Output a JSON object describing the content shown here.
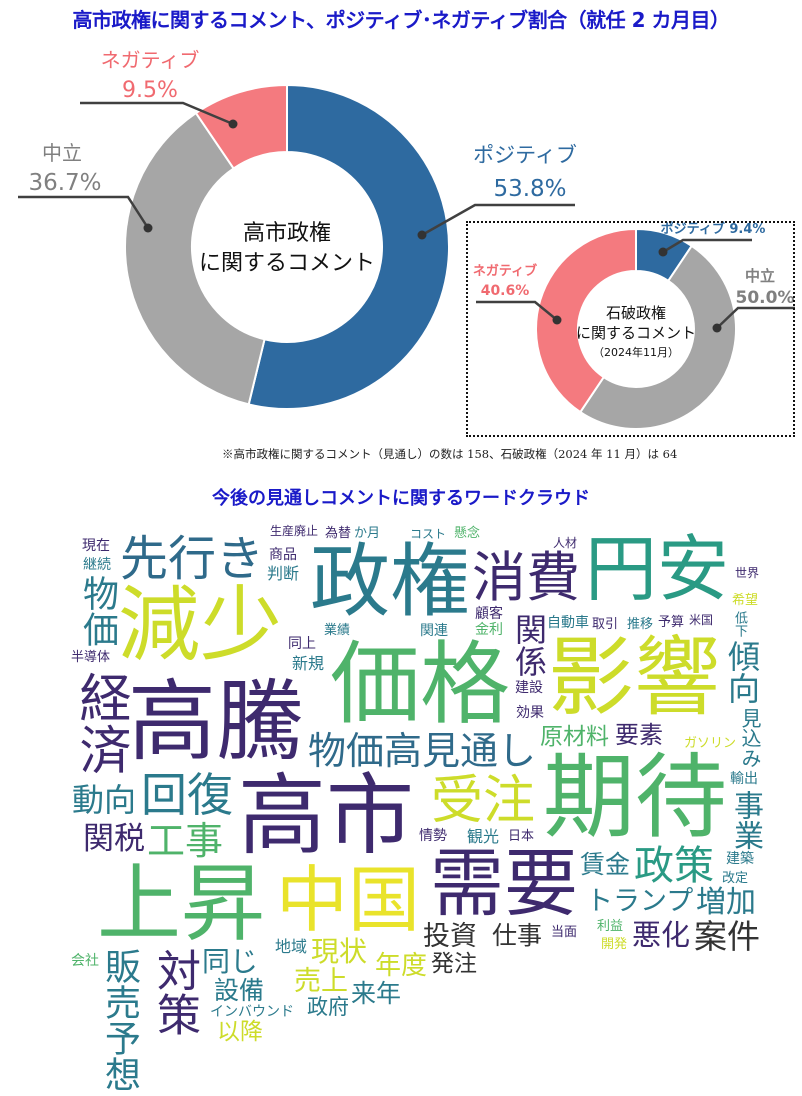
{
  "title": "高市政権に関するコメント、ポジティブ･ネガティブ割合（就任 2 カ月目）",
  "chart_data": [
    {
      "type": "pie",
      "subtype": "donut",
      "center_label": [
        "高市政権",
        "に関するコメント"
      ],
      "categories": [
        "ポジティブ",
        "中立",
        "ネガティブ"
      ],
      "values": [
        53.8,
        36.7,
        9.5
      ],
      "value_labels": [
        "53.8%",
        "36.7%",
        "9.5%"
      ],
      "colors": [
        "#2e6aa0",
        "#a6a6a6",
        "#f47a7f"
      ]
    },
    {
      "type": "pie",
      "subtype": "donut",
      "center_label": [
        "石破政権",
        "に関するコメント",
        "（2024年11月）"
      ],
      "categories": [
        "ポジティブ",
        "中立",
        "ネガティブ"
      ],
      "values": [
        9.4,
        50.0,
        40.6
      ],
      "value_labels": [
        "9.4%",
        "50.0%",
        "40.6%"
      ],
      "colors": [
        "#2e6aa0",
        "#a6a6a6",
        "#f47a7f"
      ]
    }
  ],
  "note": "※高市政権に関するコメント（見通し）の数は 158、石破政権（2024 年 11 月）は 64",
  "wordcloud": {
    "title": "今後の見通しコメントに関するワードクラウド",
    "words": [
      "政権",
      "減少",
      "価格",
      "影響",
      "高騰",
      "中国",
      "高市",
      "上昇",
      "需要",
      "期待",
      "円安",
      "消費",
      "先行き",
      "受注",
      "物価高見通し",
      "販売予想",
      "経済",
      "対策",
      "物価",
      "回復",
      "関係",
      "増加",
      "政策",
      "案件",
      "投資",
      "現状",
      "動向",
      "原材料",
      "関税",
      "工事",
      "設備",
      "売上",
      "仕事",
      "同じ",
      "以降",
      "政府",
      "来年",
      "年度",
      "発注",
      "悪化",
      "トランプ",
      "賃金",
      "要素",
      "傾向",
      "見込み",
      "事業",
      "会社",
      "インバウンド",
      "地域",
      "新規",
      "半導体",
      "同上",
      "商品",
      "為替",
      "継続",
      "生産廃止",
      "金利",
      "自動車",
      "関連",
      "効果",
      "建設",
      "取引",
      "推移",
      "予算",
      "日本",
      "当面",
      "改定",
      "利益",
      "人材",
      "世界",
      "希望",
      "米国",
      "低下",
      "コスト",
      "懸念",
      "建築",
      "輸出",
      "ガソリン",
      "開発",
      "か月",
      "業績",
      "顧客",
      "判断",
      "現在",
      "観光",
      "情勢"
    ]
  }
}
